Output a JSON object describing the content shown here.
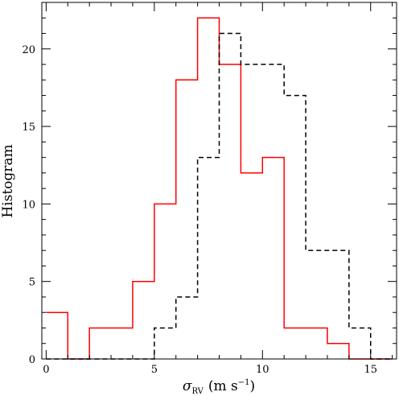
{
  "chart_data": {
    "type": "histogram",
    "title": "",
    "ylabel": "Histogram",
    "xlabel": {
      "symbol": "σ",
      "subscript": "RV",
      "units": "(m s",
      "exponent": "−1",
      "close": ")"
    },
    "xlim": [
      -0.2,
      16.2
    ],
    "ylim": [
      0,
      23
    ],
    "xticks": [
      0,
      5,
      10,
      15
    ],
    "xtick_labels": [
      "0",
      "5",
      "10",
      "15"
    ],
    "xminor_step": 1,
    "yticks": [
      0,
      5,
      10,
      15,
      20
    ],
    "ytick_labels": [
      "0",
      "5",
      "10",
      "15",
      "20"
    ],
    "yminor_step": 1,
    "bin_width": 1,
    "bin_edges": [
      0,
      1,
      2,
      3,
      4,
      5,
      6,
      7,
      8,
      9,
      10,
      11,
      12,
      13,
      14,
      15,
      16
    ],
    "series": [
      {
        "style": "solid",
        "color": "#ff0000",
        "counts": [
          3,
          0,
          2,
          2,
          5,
          10,
          18,
          22,
          19,
          12,
          13,
          2,
          2,
          1,
          0,
          0
        ]
      },
      {
        "style": "dashed",
        "color": "#000000",
        "counts": [
          0,
          0,
          0,
          0,
          0,
          2,
          4,
          13,
          21,
          19,
          19,
          17,
          7,
          7,
          2,
          0
        ]
      }
    ],
    "grid": false,
    "legend": "none"
  }
}
